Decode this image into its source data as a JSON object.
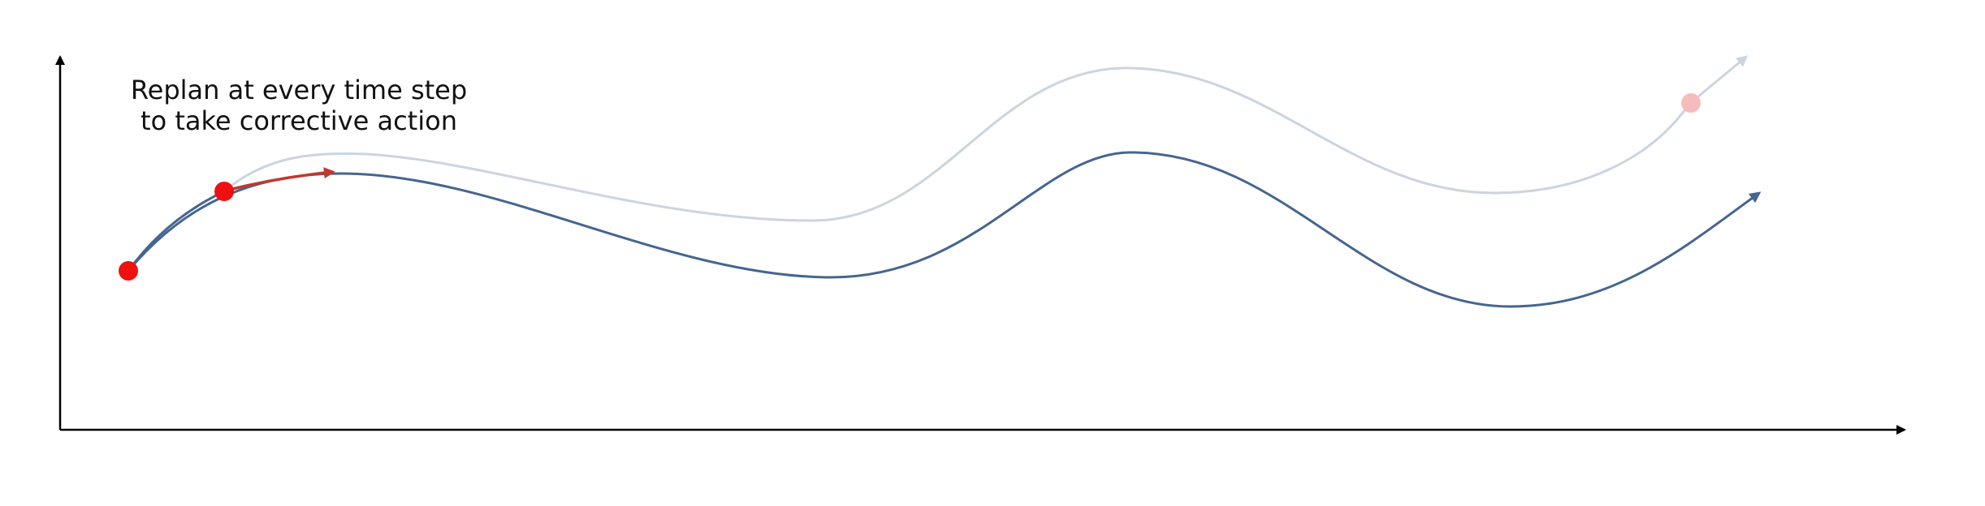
{
  "annotation": {
    "line1": "Replan at every time step",
    "line2": "to take corrective action"
  },
  "colors": {
    "axis": "#000000",
    "actual_trajectory": "#44668f",
    "planned_trajectory": "#ccd4e0",
    "replan_arrow": "#c0392b",
    "state_marker": "#ee1111",
    "faded_marker": "#f6bcbc"
  }
}
